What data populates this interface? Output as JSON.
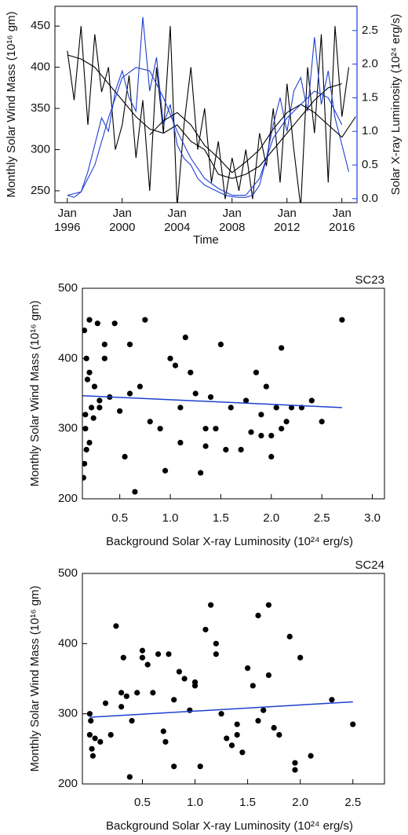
{
  "chart_data": [
    {
      "type": "line",
      "xlabel": "Time",
      "ylabel": "Monthly Solar Wind Mass (10¹⁶ gm)",
      "y2label": "Solar X-ray Luminosity (10²⁴ erg/s)",
      "y2color": "#1f3fd0",
      "xlim": [
        1995.1,
        2017.1
      ],
      "xticks": [
        {
          "value": 1996,
          "label": "Jan 1996"
        },
        {
          "value": 2000,
          "label": "Jan 2000"
        },
        {
          "value": 2004,
          "label": "Jan 2004"
        },
        {
          "value": 2008,
          "label": "Jan 2008"
        },
        {
          "value": 2012,
          "label": "Jan 2012"
        },
        {
          "value": 2016,
          "label": "Jan 2016"
        }
      ],
      "ylim": [
        235.6,
        474
      ],
      "yticks": [
        250,
        300,
        350,
        400,
        450
      ],
      "y2lim": [
        -0.06,
        2.86
      ],
      "y2ticks": [
        {
          "value": 0,
          "label": "0.0"
        },
        0.5,
        {
          "value": 1,
          "label": "1.0"
        },
        1.5,
        {
          "value": 2,
          "label": "2.0"
        },
        2.5
      ],
      "series": [
        {
          "color": "#000000",
          "x": [
            1996,
            1996.5,
            1997,
            1997.5,
            1998,
            1998.5,
            1999,
            1999.5,
            2000,
            2000.5,
            2001,
            2001.5,
            2002,
            2002.5,
            2003,
            2003.5,
            2004,
            2004.5,
            2005,
            2005.5,
            2006,
            2006.5,
            2007,
            2007.5,
            2008,
            2008.5,
            2009,
            2009.5,
            2010,
            2010.5,
            2011,
            2011.5,
            2012,
            2012.5,
            2013,
            2013.5,
            2014,
            2014.5,
            2015,
            2015.5,
            2016,
            2016.5
          ],
          "values": [
            420,
            360,
            450,
            330,
            440,
            370,
            400,
            300,
            330,
            390,
            290,
            360,
            250,
            400,
            320,
            450,
            230,
            330,
            400,
            300,
            350,
            260,
            310,
            240,
            290,
            250,
            300,
            240,
            320,
            280,
            350,
            260,
            380,
            300,
            230,
            400,
            320,
            440,
            260,
            450,
            340,
            400
          ]
        },
        {
          "color": "#1f3fd0",
          "axis": "y2",
          "x": [
            1996,
            1996.5,
            1997,
            1997.5,
            1998,
            1998.5,
            1999,
            1999.5,
            2000,
            2000.5,
            2001,
            2001.5,
            2002,
            2002.5,
            2003,
            2003.5,
            2004,
            2004.5,
            2005,
            2005.5,
            2006,
            2006.5,
            2007,
            2007.5,
            2008,
            2008.5,
            2009,
            2009.5,
            2010,
            2010.5,
            2011,
            2011.5,
            2012,
            2012.5,
            2013,
            2013.5,
            2014,
            2014.5,
            2015,
            2015.5,
            2016,
            2016.5
          ],
          "values": [
            0.05,
            0.02,
            0.1,
            0.4,
            0.8,
            1.2,
            1.0,
            1.6,
            1.9,
            1.5,
            1.3,
            2.7,
            1.6,
            2.1,
            1.1,
            1.4,
            0.8,
            0.6,
            0.5,
            0.3,
            0.2,
            0.15,
            0.1,
            0.05,
            0.03,
            0.02,
            0.02,
            0.05,
            0.2,
            0.6,
            1.1,
            1.5,
            1.0,
            1.6,
            1.8,
            1.3,
            2.4,
            1.4,
            1.9,
            1.2,
            0.8,
            0.4
          ]
        },
        {
          "color": "#000000",
          "x": [
            1996,
            1997,
            1998,
            1999,
            2000,
            2001,
            2002,
            2003,
            2004,
            2005,
            2006,
            2007,
            2008,
            2009,
            2010,
            2011,
            2012,
            2013,
            2014,
            2015,
            2016
          ],
          "values": [
            415,
            410,
            400,
            380,
            360,
            340,
            325,
            320,
            330,
            310,
            300,
            270,
            265,
            270,
            280,
            300,
            320,
            340,
            360,
            375,
            380
          ]
        },
        {
          "color": "#000000",
          "x": [
            2002,
            2003,
            2004,
            2005,
            2006,
            2007,
            2008,
            2009,
            2010,
            2011,
            2012,
            2013,
            2014,
            2015,
            2016,
            2017
          ],
          "values": [
            318,
            335,
            345,
            330,
            305,
            290,
            272,
            285,
            300,
            325,
            345,
            355,
            345,
            330,
            315,
            340
          ]
        },
        {
          "color": "#1f3fd0",
          "axis": "y2",
          "x": [
            1996,
            1997,
            1998,
            1999,
            2000,
            2001,
            2002,
            2003,
            2004,
            2005,
            2006,
            2007,
            2008,
            2009,
            2010,
            2011,
            2012,
            2013,
            2014,
            2015,
            2016
          ],
          "values": [
            0.05,
            0.1,
            0.5,
            1.2,
            1.8,
            1.95,
            1.9,
            1.5,
            1.0,
            0.6,
            0.3,
            0.15,
            0.05,
            0.05,
            0.3,
            0.9,
            1.2,
            1.4,
            1.6,
            1.5,
            1.1
          ]
        }
      ]
    },
    {
      "type": "scatter",
      "title": "SC23",
      "xlabel": "Background Solar X-ray Luminosity (10²⁴ erg/s)",
      "ylabel": "Monthly Solar Wind Mass (10¹⁶ gm)",
      "xlim": [
        0.13,
        3.12
      ],
      "xticks": [
        0.5,
        {
          "value": 1,
          "label": "1.0"
        },
        1.5,
        {
          "value": 2,
          "label": "2.0"
        },
        2.5,
        {
          "value": 3,
          "label": "3.0"
        }
      ],
      "ylim": [
        200,
        500
      ],
      "yticks": [
        200,
        300,
        400,
        500
      ],
      "color": "#000000",
      "x": [
        0.15,
        0.16,
        0.17,
        0.18,
        0.2,
        0.22,
        0.25,
        0.28,
        0.3,
        0.15,
        0.17,
        0.2,
        0.24,
        0.3,
        0.35,
        0.4,
        0.45,
        0.5,
        0.55,
        0.6,
        0.65,
        0.7,
        0.75,
        0.8,
        0.9,
        1.0,
        1.05,
        1.1,
        1.15,
        1.2,
        1.25,
        1.3,
        1.35,
        1.4,
        1.45,
        1.5,
        1.55,
        1.6,
        1.7,
        1.75,
        1.8,
        1.85,
        1.9,
        1.95,
        2.0,
        2.05,
        2.1,
        2.15,
        2.2,
        2.3,
        2.4,
        2.5,
        2.7,
        0.14,
        0.16,
        0.2,
        0.35,
        0.6,
        0.95,
        1.1,
        1.35,
        1.9,
        2.0,
        2.1
      ],
      "values": [
        440,
        300,
        400,
        370,
        455,
        330,
        360,
        450,
        340,
        250,
        270,
        380,
        315,
        330,
        400,
        345,
        450,
        325,
        260,
        420,
        210,
        360,
        455,
        310,
        300,
        400,
        390,
        330,
        430,
        380,
        350,
        237,
        300,
        345,
        300,
        420,
        270,
        330,
        270,
        340,
        295,
        380,
        320,
        360,
        290,
        330,
        415,
        310,
        330,
        330,
        340,
        310,
        455,
        230,
        320,
        280,
        420,
        350,
        240,
        280,
        275,
        290,
        260,
        300
      ],
      "fit": {
        "color": "#1f3fd0",
        "x": [
          0.13,
          2.7
        ],
        "values": [
          347,
          330
        ]
      }
    },
    {
      "type": "scatter",
      "title": "SC24",
      "xlabel": "Background Solar X-ray Luminosity (10²⁴ erg/s)",
      "ylabel": "Monthly Solar Wind Mass (10¹⁶ gm)",
      "xlim": [
        -0.07,
        2.8
      ],
      "xticks": [
        0.5,
        {
          "value": 1,
          "label": "1.0"
        },
        1.5,
        {
          "value": 2,
          "label": "2.0"
        },
        2.5
      ],
      "ylim": [
        200,
        500
      ],
      "yticks": [
        200,
        300,
        400,
        500
      ],
      "color": "#000000",
      "x": [
        0.0,
        0.0,
        0.02,
        0.03,
        0.05,
        0.1,
        0.15,
        0.2,
        0.25,
        0.3,
        0.32,
        0.35,
        0.38,
        0.4,
        0.45,
        0.5,
        0.55,
        0.6,
        0.65,
        0.7,
        0.72,
        0.75,
        0.8,
        0.85,
        0.9,
        0.95,
        1.0,
        1.05,
        1.1,
        1.15,
        1.2,
        1.25,
        1.3,
        1.35,
        1.4,
        1.45,
        1.5,
        1.55,
        1.6,
        1.65,
        1.7,
        1.75,
        1.8,
        1.9,
        1.95,
        2.0,
        2.1,
        2.3,
        2.5,
        0.01,
        0.3,
        0.5,
        0.8,
        1.0,
        1.2,
        1.4,
        1.6,
        1.7,
        1.95
      ],
      "values": [
        270,
        300,
        250,
        240,
        265,
        260,
        315,
        270,
        425,
        330,
        380,
        325,
        210,
        290,
        330,
        390,
        370,
        330,
        385,
        275,
        260,
        385,
        225,
        360,
        350,
        305,
        345,
        225,
        420,
        455,
        385,
        300,
        265,
        255,
        285,
        245,
        365,
        340,
        440,
        305,
        455,
        280,
        270,
        410,
        220,
        380,
        240,
        320,
        285,
        290,
        310,
        380,
        320,
        340,
        400,
        270,
        290,
        355,
        230
      ],
      "fit": {
        "color": "#1f3fd0",
        "x": [
          0,
          2.5
        ],
        "values": [
          295,
          317
        ]
      }
    }
  ]
}
